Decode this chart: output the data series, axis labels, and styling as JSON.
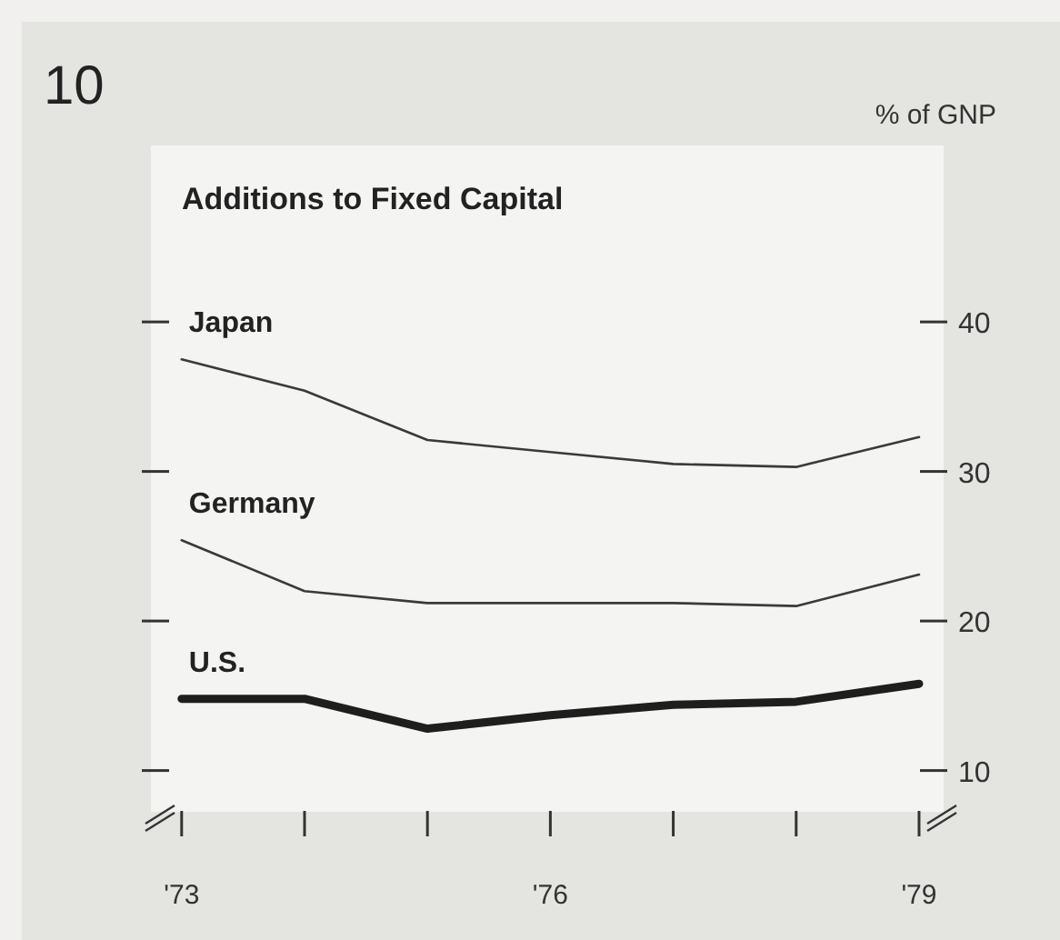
{
  "chart_data": {
    "type": "line",
    "title": "Additions to Fixed Capital",
    "ylabel": "% of GNP",
    "annotations": [
      "10"
    ],
    "x": [
      73,
      74,
      75,
      76,
      77,
      78,
      79
    ],
    "xlim": [
      72.75,
      79.2
    ],
    "xticks": [
      {
        "value": 73,
        "label": "'73"
      },
      {
        "value": 74,
        "label": null
      },
      {
        "value": 75,
        "label": null
      },
      {
        "value": 76,
        "label": "'76"
      },
      {
        "value": 77,
        "label": null
      },
      {
        "value": 78,
        "label": null
      },
      {
        "value": 79,
        "label": "'79"
      }
    ],
    "ylim": [
      7.3,
      51.8
    ],
    "yticks": [
      10,
      20,
      30,
      40
    ],
    "series": [
      {
        "name": "Japan",
        "color": "#3a3a3a",
        "values": [
          37.5,
          35.4,
          32.1,
          31.3,
          30.5,
          30.3,
          32.3
        ]
      },
      {
        "name": "Germany",
        "color": "#3a3a3a",
        "values": [
          25.4,
          22.0,
          21.2,
          21.2,
          21.2,
          21.0,
          23.1
        ]
      },
      {
        "name": "U.S.",
        "color": "#1e1e1e",
        "values": [
          14.8,
          14.8,
          12.8,
          13.7,
          14.4,
          14.6,
          15.8
        ]
      }
    ],
    "grid": false,
    "legend": "left",
    "marker": "none",
    "line_style": "solid"
  }
}
